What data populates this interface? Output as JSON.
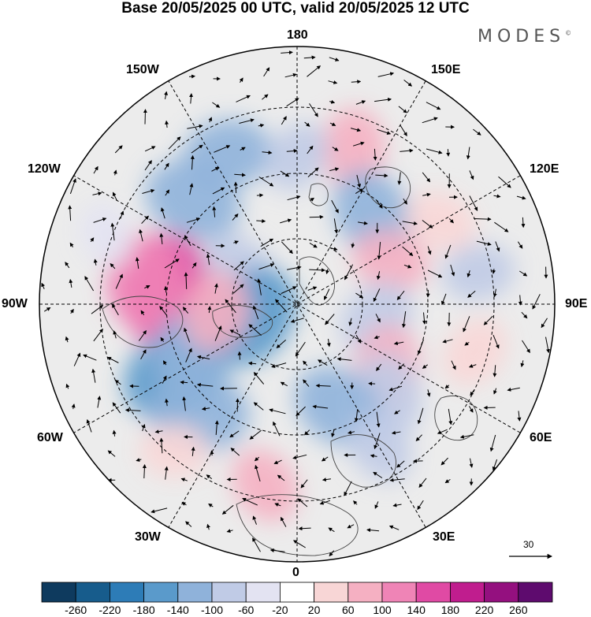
{
  "title": "Base 20/05/2025 00 UTC, valid 20/05/2025 12 UTC",
  "brand": "MODES",
  "brand_mark": "©",
  "longitude_labels": {
    "lon_180": "180",
    "lon_150w": "150W",
    "lon_150e": "150E",
    "lon_120w": "120W",
    "lon_120e": "120E",
    "lon_90w": "90W",
    "lon_90e": "90E",
    "lon_60w": "60W",
    "lon_60e": "60E",
    "lon_30w": "30W",
    "lon_30e": "30E",
    "lon_0": "0"
  },
  "reference_vector": {
    "label": "30"
  },
  "colorbar": {
    "ticks": [
      "-260",
      "-220",
      "-180",
      "-140",
      "-100",
      "-60",
      "-20",
      "20",
      "60",
      "100",
      "140",
      "180",
      "220",
      "260"
    ],
    "colors": [
      "#0e3a5e",
      "#175c8c",
      "#2d7cb7",
      "#5a9acb",
      "#8fb2da",
      "#c0cbe6",
      "#e3e3f2",
      "#ffffff",
      "#f8d6d6",
      "#f5b0c2",
      "#ef84b6",
      "#e04aa4",
      "#c01d8e",
      "#94107f",
      "#5e0b6e"
    ]
  },
  "anomaly_patches": [
    {
      "lon": 265,
      "lat": 55,
      "value": 170
    },
    {
      "lon": 262,
      "lat": 48,
      "value": 120
    },
    {
      "lon": 300,
      "lat": 52,
      "value": -150
    },
    {
      "lon": 318,
      "lat": 50,
      "value": -130
    },
    {
      "lon": 292,
      "lat": 60,
      "value": -110
    },
    {
      "lon": 225,
      "lat": 50,
      "value": -120
    },
    {
      "lon": 205,
      "lat": 45,
      "value": -100
    },
    {
      "lon": 160,
      "lat": 45,
      "value": 80
    },
    {
      "lon": 140,
      "lat": 58,
      "value": -110
    },
    {
      "lon": 115,
      "lat": 62,
      "value": 70
    },
    {
      "lon": 80,
      "lat": 68,
      "value": -80
    },
    {
      "lon": 55,
      "lat": 60,
      "value": 90
    },
    {
      "lon": 45,
      "lat": 55,
      "value": -90
    },
    {
      "lon": 22,
      "lat": 60,
      "value": -110
    },
    {
      "lon": 30,
      "lat": 45,
      "value": -60
    },
    {
      "lon": 240,
      "lat": 72,
      "value": -80
    },
    {
      "lon": 285,
      "lat": 77,
      "value": -140
    },
    {
      "lon": 275,
      "lat": 68,
      "value": 80
    },
    {
      "lon": 350,
      "lat": 40,
      "value": 70
    },
    {
      "lon": 180,
      "lat": 50,
      "value": -60
    },
    {
      "lon": 100,
      "lat": 40,
      "value": -60
    },
    {
      "lon": 75,
      "lat": 40,
      "value": 60
    },
    {
      "lon": 120,
      "lat": 45,
      "value": 60
    },
    {
      "lon": 320,
      "lat": 38,
      "value": 50
    },
    {
      "lon": 250,
      "lat": 35,
      "value": -40
    }
  ]
}
